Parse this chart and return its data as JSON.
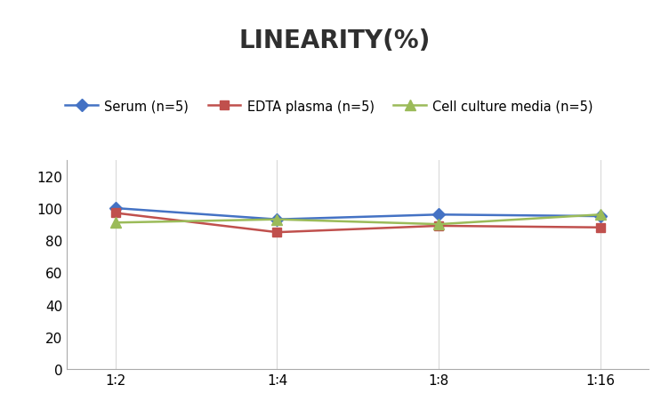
{
  "title": "LINEARITY(%)",
  "x_labels": [
    "1∶2",
    "1∶4",
    "1∶8",
    "1∶16"
  ],
  "x_positions": [
    0,
    1,
    2,
    3
  ],
  "series": [
    {
      "name": "Serum (n=5)",
      "values": [
        100,
        93,
        96,
        95
      ],
      "color": "#4472C4",
      "marker": "D",
      "marker_size": 7,
      "linewidth": 1.8
    },
    {
      "name": "EDTA plasma (n=5)",
      "values": [
        97,
        85,
        89,
        88
      ],
      "color": "#C0504D",
      "marker": "s",
      "marker_size": 7,
      "linewidth": 1.8
    },
    {
      "name": "Cell culture media (n=5)",
      "values": [
        91,
        93,
        90,
        96
      ],
      "color": "#9BBB59",
      "marker": "^",
      "marker_size": 8,
      "linewidth": 1.8
    }
  ],
  "ylim": [
    0,
    130
  ],
  "yticks": [
    0,
    20,
    40,
    60,
    80,
    100,
    120
  ],
  "grid_color": "#D9D9D9",
  "background_color": "#FFFFFF",
  "title_fontsize": 20,
  "legend_fontsize": 10.5,
  "tick_fontsize": 11
}
